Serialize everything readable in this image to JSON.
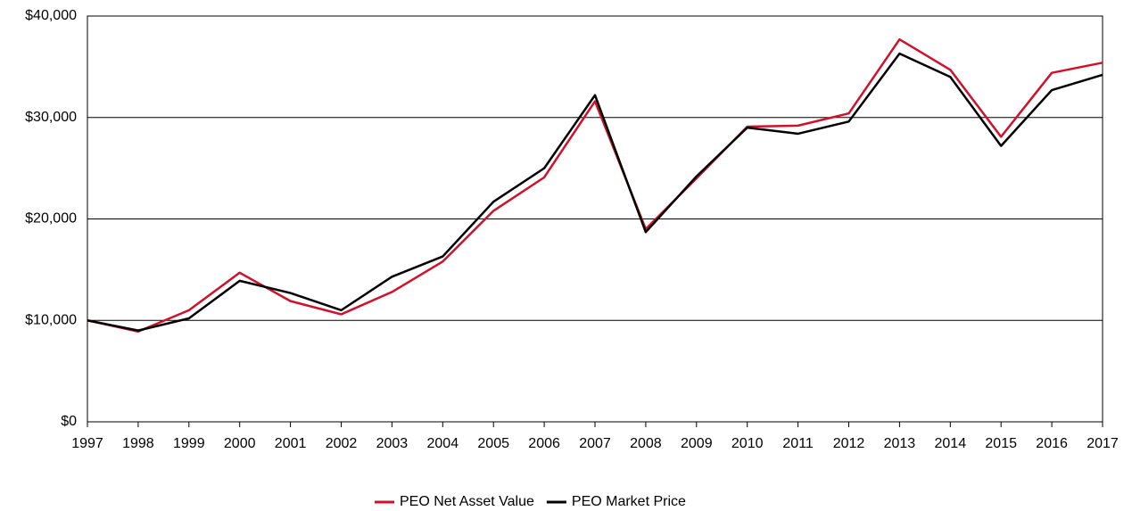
{
  "chart_data": {
    "type": "line",
    "x": [
      1997,
      1998,
      1999,
      2000,
      2001,
      2002,
      2003,
      2004,
      2005,
      2006,
      2007,
      2008,
      2009,
      2010,
      2011,
      2012,
      2013,
      2014,
      2015,
      2016,
      2017
    ],
    "series": [
      {
        "name": "PEO Net Asset Value",
        "color": "#d0112b",
        "values": [
          10000,
          8900,
          11000,
          14700,
          11900,
          10600,
          12800,
          15800,
          20800,
          24100,
          31600,
          19000,
          24000,
          29100,
          29200,
          30400,
          37700,
          34700,
          28100,
          34400,
          35400
        ]
      },
      {
        "name": "PEO Market Price",
        "color": "#000000",
        "values": [
          10000,
          9000,
          10200,
          13900,
          12700,
          11000,
          14300,
          16300,
          21700,
          25000,
          32200,
          18700,
          24200,
          29000,
          28400,
          29600,
          36300,
          34000,
          27200,
          32700,
          34200
        ]
      }
    ],
    "xlim": [
      1997,
      2017
    ],
    "xticks": [
      1997,
      1998,
      1999,
      2000,
      2001,
      2002,
      2003,
      2004,
      2005,
      2006,
      2007,
      2008,
      2009,
      2010,
      2011,
      2012,
      2013,
      2014,
      2015,
      2016,
      2017
    ],
    "ylim": [
      0,
      40000
    ],
    "yticks": [
      {
        "value": 0,
        "label": "$0"
      },
      {
        "value": 10000,
        "label": "$10,000"
      },
      {
        "value": 20000,
        "label": "$20,000"
      },
      {
        "value": 30000,
        "label": "$30,000"
      },
      {
        "value": 40000,
        "label": "$40,000"
      }
    ],
    "grid": true,
    "legend": "bottom"
  }
}
